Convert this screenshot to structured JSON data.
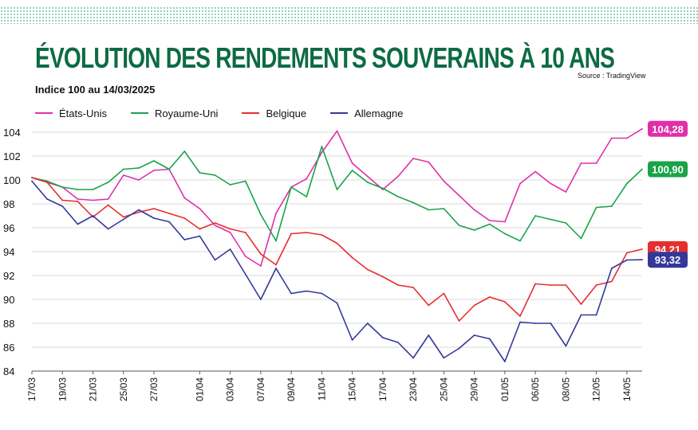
{
  "header": {
    "title": "ÉVOLUTION DES RENDEMENTS SOUVERAINS À 10 ANS",
    "subtitle": "Indice 100 au 14/03/2025",
    "source": "Source : TradingView"
  },
  "colors": {
    "title": "#0d6b43",
    "etats_unis": "#e030a8",
    "royaume_uni": "#1aa34a",
    "belgique": "#e52f2f",
    "allemagne": "#34389a"
  },
  "chart_data": {
    "type": "line",
    "ylim": [
      84,
      104
    ],
    "yticks": [
      84,
      86,
      88,
      90,
      92,
      94,
      96,
      98,
      100,
      102,
      104
    ],
    "grid": true,
    "legend_position": "top-left",
    "x_labels": [
      {
        "label": "17/03",
        "i": 0
      },
      {
        "label": "19/03",
        "i": 2
      },
      {
        "label": "21/03",
        "i": 4
      },
      {
        "label": "25/03",
        "i": 6
      },
      {
        "label": "27/03",
        "i": 8
      },
      {
        "label": "01/04",
        "i": 11
      },
      {
        "label": "03/04",
        "i": 13
      },
      {
        "label": "07/04",
        "i": 15
      },
      {
        "label": "09/04",
        "i": 17
      },
      {
        "label": "11/04",
        "i": 19
      },
      {
        "label": "15/04",
        "i": 21
      },
      {
        "label": "17/04",
        "i": 23
      },
      {
        "label": "23/04",
        "i": 25
      },
      {
        "label": "25/04",
        "i": 27
      },
      {
        "label": "29/04",
        "i": 29
      },
      {
        "label": "01/05",
        "i": 31
      },
      {
        "label": "06/05",
        "i": 33
      },
      {
        "label": "08/05",
        "i": 35
      },
      {
        "label": "12/05",
        "i": 37
      },
      {
        "label": "14/05",
        "i": 39
      }
    ],
    "series": [
      {
        "name": "États-Unis",
        "color": "#e030a8",
        "end_label": "104,28",
        "values": [
          100.2,
          99.8,
          99.4,
          98.4,
          98.3,
          98.4,
          100.4,
          100.0,
          100.8,
          100.9,
          98.5,
          97.6,
          96.2,
          95.6,
          93.6,
          92.8,
          97.2,
          99.4,
          100.1,
          102.3,
          104.1,
          101.4,
          100.3,
          99.2,
          100.3,
          101.8,
          101.5,
          99.9,
          98.7,
          97.5,
          96.6,
          96.5,
          99.7,
          100.7,
          99.7,
          99.0,
          101.4,
          101.4,
          103.5,
          103.5,
          104.28
        ]
      },
      {
        "name": "Royaume-Uni",
        "color": "#1aa34a",
        "end_label": "100,90",
        "values": [
          100.2,
          99.9,
          99.4,
          99.2,
          99.2,
          99.8,
          100.9,
          101.0,
          101.6,
          100.9,
          102.4,
          100.6,
          100.4,
          99.6,
          99.9,
          97.1,
          94.9,
          99.4,
          98.6,
          102.8,
          99.2,
          100.8,
          99.8,
          99.3,
          98.6,
          98.1,
          97.5,
          97.6,
          96.2,
          95.8,
          96.3,
          95.5,
          94.9,
          97.0,
          96.7,
          96.4,
          95.1,
          97.7,
          97.8,
          99.7,
          100.9
        ]
      },
      {
        "name": "Belgique",
        "color": "#e52f2f",
        "end_label": "94,21",
        "values": [
          100.2,
          99.8,
          98.3,
          98.2,
          96.9,
          97.9,
          96.9,
          97.3,
          97.6,
          97.2,
          96.8,
          95.9,
          96.4,
          95.9,
          95.6,
          93.8,
          92.9,
          95.5,
          95.6,
          95.4,
          94.7,
          93.5,
          92.5,
          91.9,
          91.2,
          91.0,
          89.5,
          90.5,
          88.2,
          89.5,
          90.2,
          89.8,
          88.6,
          91.3,
          91.2,
          91.2,
          89.6,
          91.2,
          91.5,
          93.9,
          94.21
        ]
      },
      {
        "name": "Allemagne",
        "color": "#34389a",
        "end_label": "93,32",
        "values": [
          99.9,
          98.4,
          97.8,
          96.3,
          97.0,
          95.9,
          96.7,
          97.5,
          96.8,
          96.5,
          95.0,
          95.3,
          93.3,
          94.2,
          92.1,
          90.0,
          92.6,
          90.5,
          90.7,
          90.5,
          89.7,
          86.6,
          88.0,
          86.8,
          86.4,
          85.1,
          87.0,
          85.1,
          85.9,
          87.0,
          86.7,
          84.8,
          88.1,
          88.0,
          88.0,
          86.1,
          88.7,
          88.7,
          92.6,
          93.3,
          93.32
        ]
      }
    ]
  }
}
